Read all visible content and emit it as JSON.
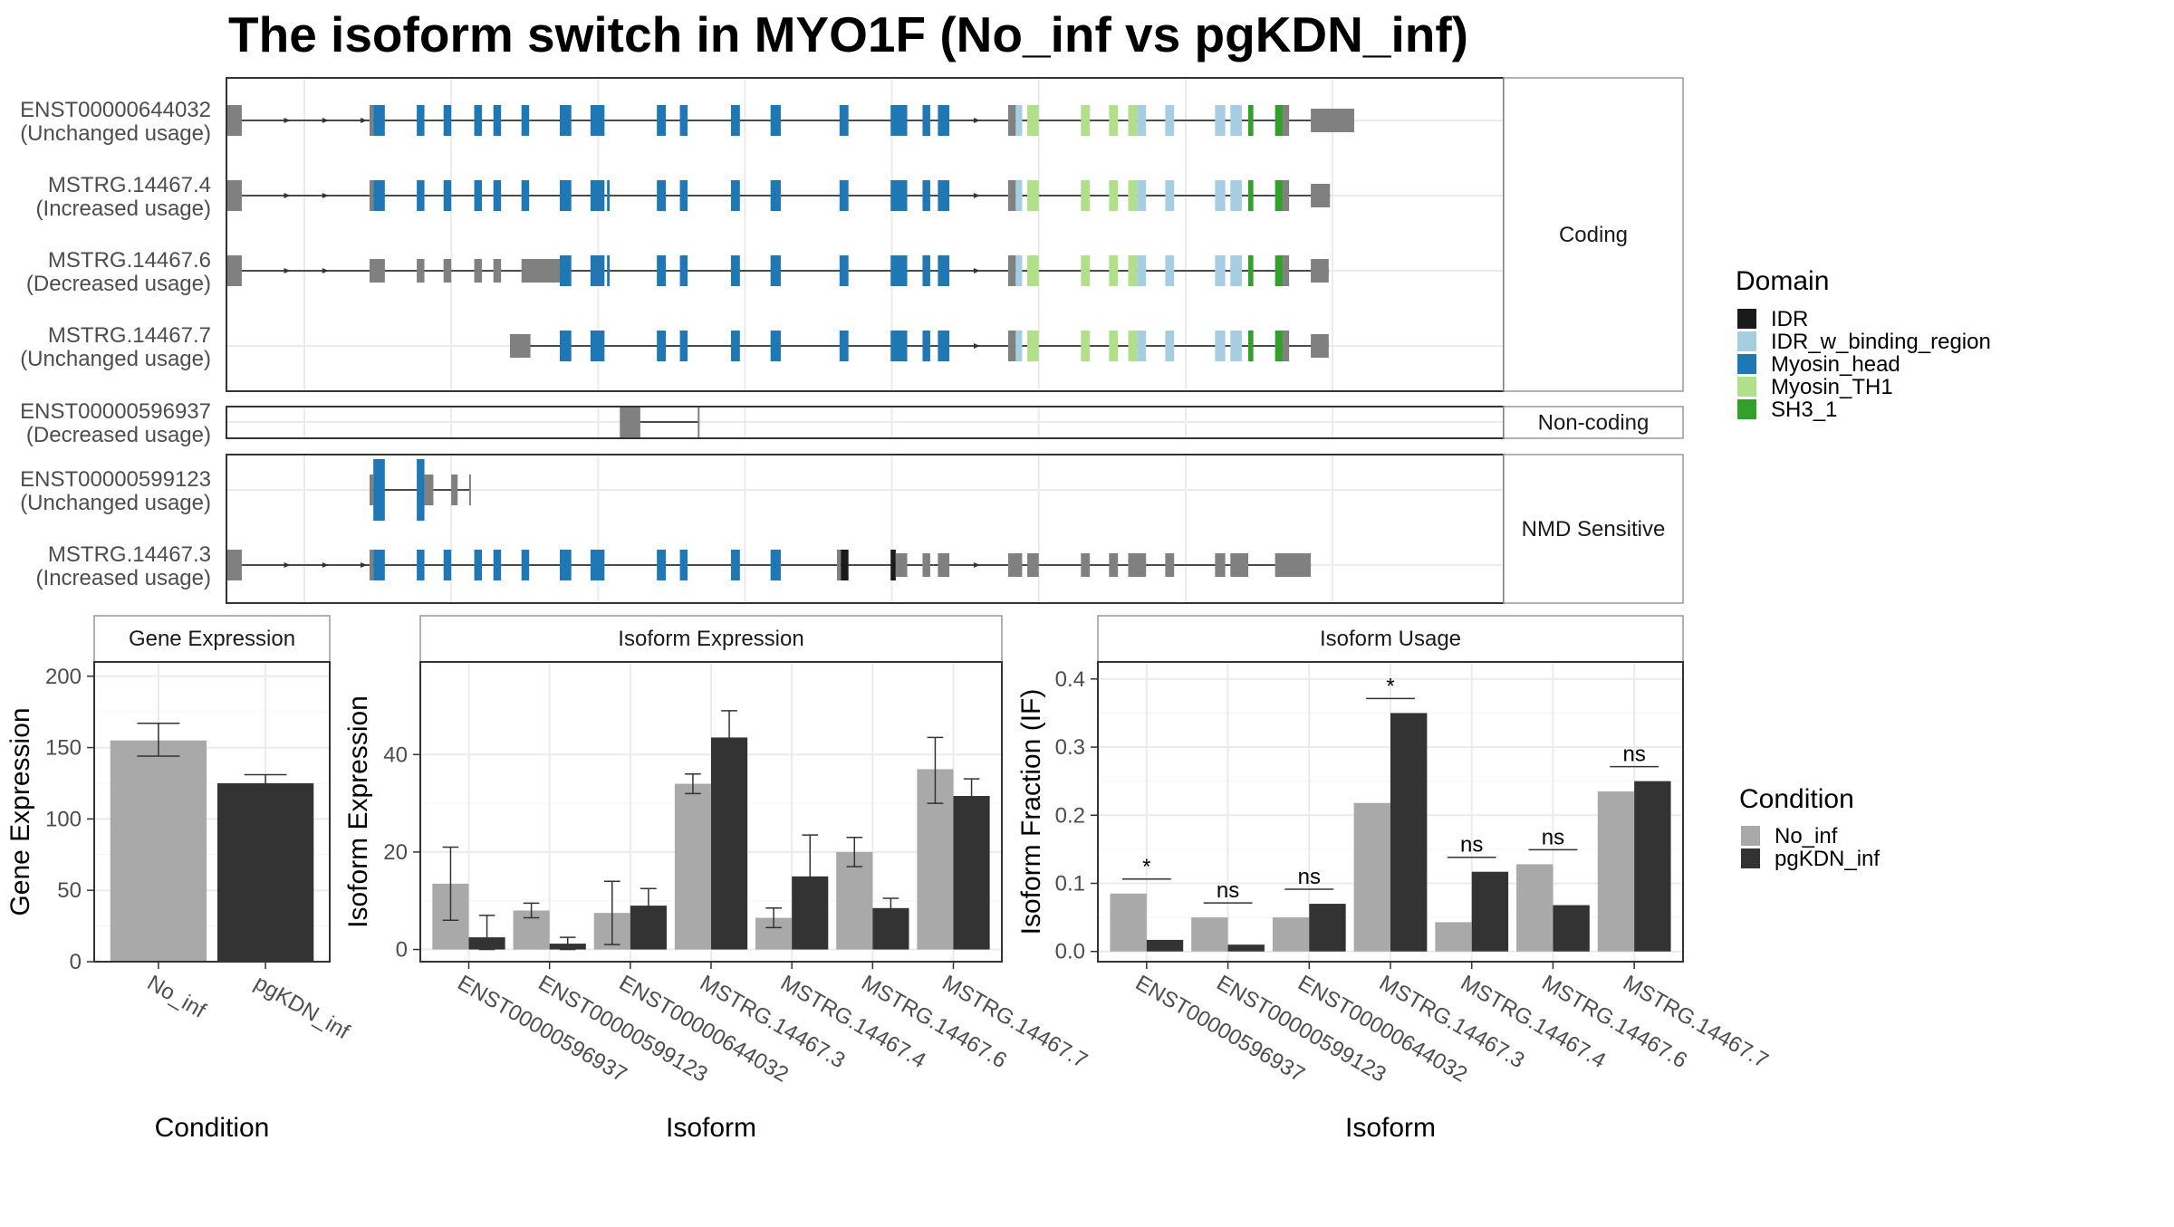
{
  "title": "The isoform switch in MYO1F (No_inf vs pgKDN_inf)",
  "colors": {
    "IDR": "#1a1a1a",
    "IDR_w_binding_region": "#a6cee3",
    "Myosin_head": "#1f78b4",
    "Myosin_TH1": "#b2df8a",
    "SH3_1": "#33a02c",
    "noncoding": "#808080",
    "No_inf": "#a9a9a9",
    "pgKDN_inf": "#333333"
  },
  "transcripts": {
    "groups": [
      {
        "label": "Coding",
        "tracks": [
          {
            "id": "ENST00000644032",
            "usage": "(Unchanged usage)"
          },
          {
            "id": "MSTRG.14467.4",
            "usage": "(Increased usage)"
          },
          {
            "id": "MSTRG.14467.6",
            "usage": "(Decreased usage)"
          },
          {
            "id": "MSTRG.14467.7",
            "usage": "(Unchanged usage)"
          }
        ]
      },
      {
        "label": "Non-coding",
        "tracks": [
          {
            "id": "ENST00000596937",
            "usage": "(Decreased usage)"
          }
        ]
      },
      {
        "label": "NMD Sensitive",
        "tracks": [
          {
            "id": "ENST00000599123",
            "usage": "(Unchanged usage)"
          },
          {
            "id": "MSTRG.14467.3",
            "usage": "(Increased usage)"
          }
        ]
      }
    ]
  },
  "legend_domain": {
    "title": "Domain",
    "items": [
      {
        "label": "IDR",
        "color": "#1a1a1a"
      },
      {
        "label": "IDR_w_binding_region",
        "color": "#a6cee3"
      },
      {
        "label": "Myosin_head",
        "color": "#1f78b4"
      },
      {
        "label": "Myosin_TH1",
        "color": "#b2df8a"
      },
      {
        "label": "SH3_1",
        "color": "#33a02c"
      }
    ]
  },
  "legend_condition": {
    "title": "Condition",
    "items": [
      {
        "label": "No_inf",
        "color": "#a9a9a9"
      },
      {
        "label": "pgKDN_inf",
        "color": "#333333"
      }
    ]
  },
  "chart_data": [
    {
      "type": "bar",
      "title": "Gene Expression",
      "xlabel": "Condition",
      "ylabel": "Gene Expression",
      "categories": [
        "No_inf",
        "pgKDN_inf"
      ],
      "values": [
        155,
        125
      ],
      "errors": [
        [
          144,
          167
        ],
        [
          119,
          131
        ]
      ],
      "ylim": [
        0,
        210
      ],
      "yticks": [
        0,
        50,
        100,
        150,
        200
      ]
    },
    {
      "type": "bar",
      "title": "Isoform Expression",
      "xlabel": "Isoform",
      "ylabel": "Isoform Expression",
      "categories": [
        "ENST00000596937",
        "ENST00000599123",
        "ENST00000644032",
        "MSTRG.14467.3",
        "MSTRG.14467.4",
        "MSTRG.14467.6",
        "MSTRG.14467.7"
      ],
      "series": [
        {
          "name": "No_inf",
          "values": [
            13.5,
            8,
            7.5,
            34,
            6.5,
            20,
            37
          ],
          "errors": [
            [
              6,
              21
            ],
            [
              6.5,
              9.5
            ],
            [
              1,
              14
            ],
            [
              32,
              36
            ],
            [
              4.5,
              8.5
            ],
            [
              17,
              23
            ],
            [
              30,
              43.5
            ]
          ]
        },
        {
          "name": "pgKDN_inf",
          "values": [
            2.5,
            1.2,
            9,
            43.5,
            15,
            8.5,
            31.5
          ],
          "errors": [
            [
              0,
              7
            ],
            [
              0,
              2.5
            ],
            [
              6,
              12.5
            ],
            [
              38,
              49
            ],
            [
              6,
              23.5
            ],
            [
              6.5,
              10.5
            ],
            [
              27.5,
              35
            ]
          ]
        }
      ],
      "ylim": [
        -2.5,
        59
      ],
      "yticks": [
        0,
        20,
        40
      ]
    },
    {
      "type": "bar",
      "title": "Isoform Usage",
      "xlabel": "Isoform",
      "ylabel": "Isoform Fraction (IF)",
      "categories": [
        "ENST00000596937",
        "ENST00000599123",
        "ENST00000644032",
        "MSTRG.14467.3",
        "MSTRG.14467.4",
        "MSTRG.14467.6",
        "MSTRG.14467.7"
      ],
      "series": [
        {
          "name": "No_inf",
          "values": [
            0.085,
            0.05,
            0.05,
            0.218,
            0.043,
            0.128,
            0.235
          ]
        },
        {
          "name": "pgKDN_inf",
          "values": [
            0.017,
            0.01,
            0.07,
            0.35,
            0.117,
            0.068,
            0.25
          ]
        }
      ],
      "significance": [
        "*",
        "ns",
        "ns",
        "*",
        "ns",
        "ns",
        "ns"
      ],
      "ylim": [
        -0.015,
        0.425
      ],
      "yticks": [
        0.0,
        0.1,
        0.2,
        0.3,
        0.4
      ],
      "ytick_labels": [
        "0.0",
        "0.1",
        "0.2",
        "0.3",
        "0.4"
      ]
    }
  ]
}
